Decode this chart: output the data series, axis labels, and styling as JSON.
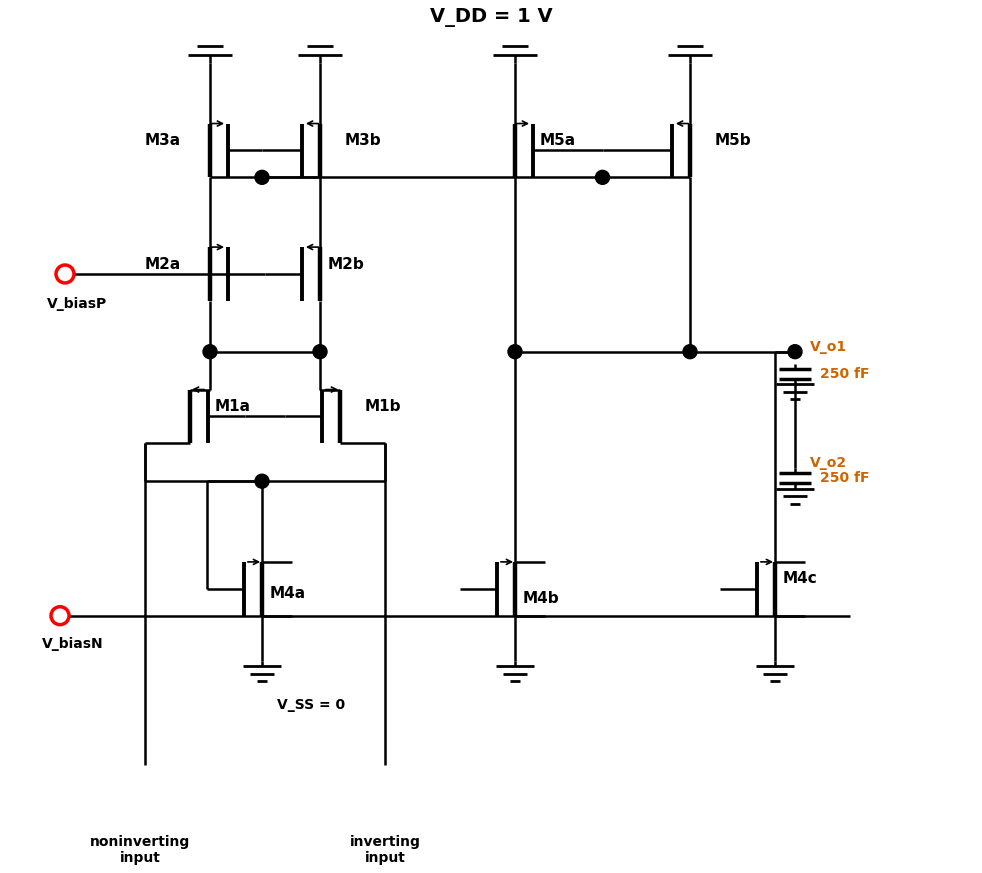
{
  "title": "V_DD = 1 V",
  "vss_label": "V_SS = 0",
  "vbiasP_label": "V_biasP",
  "vbiasN_label": "V_biasN",
  "noninv_label": "noninverting\ninput",
  "inv_label": "inverting\ninput",
  "vo1_label": "V_o1",
  "vo2_label": "V_o2",
  "cap1_label": "250 fF",
  "cap2_label": "250 fF",
  "M3a_label": "M3a",
  "M3b_label": "M3b",
  "M5a_label": "M5a",
  "M5b_label": "M5b",
  "M2a_label": "M2a",
  "M2b_label": "M2b",
  "M1a_label": "M1a",
  "M1b_label": "M1b",
  "M4a_label": "M4a",
  "M4b_label": "M4b",
  "M4c_label": "M4c",
  "text_color": "#000000",
  "orange_color": "#cc6600",
  "red_color": "#cc0000",
  "blue_color": "#000080",
  "bg_color": "#ffffff",
  "lw": 1.8
}
